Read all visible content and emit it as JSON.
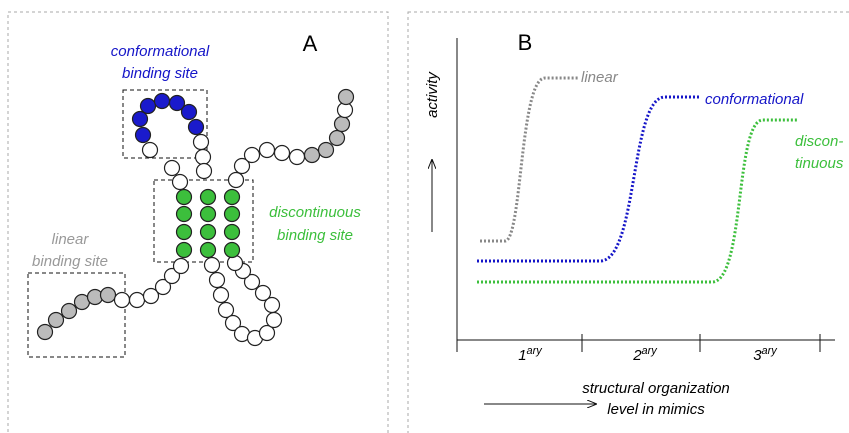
{
  "panel_a": {
    "letter": "A",
    "conformational_site": [
      "conformational",
      "binding site"
    ],
    "discontinuous_site": [
      "discontinuous",
      "binding site"
    ],
    "linear_site": [
      "linear",
      "binding site"
    ]
  },
  "panel_b": {
    "letter": "B",
    "y_axis_label": "activity",
    "x_axis_label": [
      "structural organization",
      "level in mimics"
    ],
    "x_ticks": [
      {
        "number": "1",
        "suffix": "ary"
      },
      {
        "number": "2",
        "suffix": "ary"
      },
      {
        "number": "3",
        "suffix": "ary"
      }
    ],
    "curve_labels": {
      "linear": [
        "linear"
      ],
      "conformational": [
        "conformational"
      ],
      "discontinuous": [
        "discon-",
        "tinuous"
      ]
    }
  }
}
